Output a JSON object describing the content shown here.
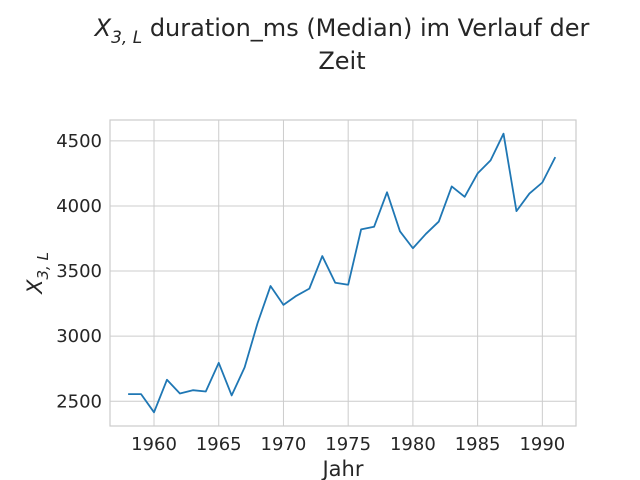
{
  "chart_data": {
    "type": "line",
    "title_line1_prefix": "X",
    "title_line1_subscript": "3, L",
    "title_line1_suffix": " duration_ms (Median) im Verlauf der",
    "title_line2": "Zeit",
    "xlabel": "Jahr",
    "ylabel_main": "X",
    "ylabel_subscript": "3, L",
    "xlim": [
      1956.6,
      1992.6
    ],
    "ylim": [
      2310,
      4660
    ],
    "x_ticks": [
      1960,
      1965,
      1970,
      1975,
      1980,
      1985,
      1990
    ],
    "y_ticks": [
      2500,
      3000,
      3500,
      4000,
      4500
    ],
    "grid": true,
    "line_color": "#1f77b4",
    "x": [
      1958,
      1959,
      1960,
      1961,
      1962,
      1963,
      1964,
      1965,
      1966,
      1967,
      1968,
      1969,
      1970,
      1971,
      1972,
      1973,
      1974,
      1975,
      1976,
      1977,
      1978,
      1979,
      1980,
      1981,
      1982,
      1983,
      1984,
      1985,
      1986,
      1987,
      1988,
      1989,
      1990,
      1991
    ],
    "values": [
      2555,
      2555,
      2415,
      2665,
      2560,
      2585,
      2575,
      2795,
      2545,
      2760,
      3100,
      3385,
      3240,
      3310,
      3365,
      3615,
      3410,
      3395,
      3820,
      3840,
      4105,
      3805,
      3675,
      3785,
      3880,
      4150,
      4070,
      4250,
      4350,
      4555,
      3960,
      4095,
      4180,
      4375
    ]
  }
}
